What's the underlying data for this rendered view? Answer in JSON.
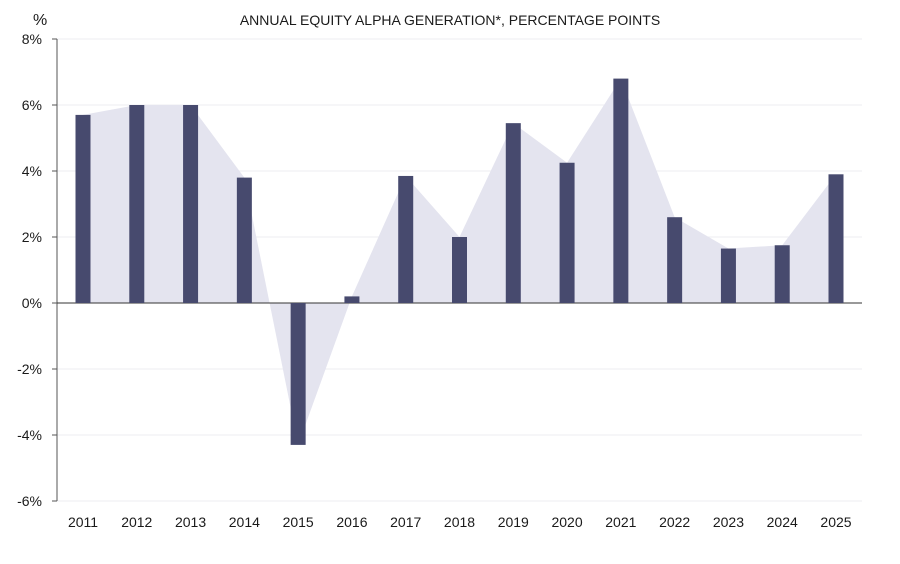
{
  "chart_data": {
    "type": "bar",
    "title": "ANNUAL EQUITY ALPHA GENERATION*, PERCENTAGE POINTS",
    "ylabel": "%",
    "xlabel": "",
    "ylim": [
      -6,
      8
    ],
    "yticks": [
      8,
      6,
      4,
      2,
      0,
      -2,
      -4,
      -6
    ],
    "ytick_labels": [
      "8%",
      "6%",
      "4%",
      "2%",
      "0%",
      "-2%",
      "-4%",
      "-6%"
    ],
    "categories": [
      "2011",
      "2012",
      "2013",
      "2014",
      "2015",
      "2016",
      "2017",
      "2018",
      "2019",
      "2020",
      "2021",
      "2022",
      "2023",
      "2024",
      "2025"
    ],
    "values": [
      5.7,
      6.0,
      6.0,
      3.8,
      -4.3,
      0.2,
      3.85,
      2.0,
      5.45,
      4.25,
      6.8,
      2.6,
      1.65,
      1.75,
      3.9
    ],
    "grid": true,
    "colors": {
      "bar": "#474a6e",
      "area": "#e4e4ef",
      "grid": "#ececf2",
      "axis": "#555555"
    }
  }
}
